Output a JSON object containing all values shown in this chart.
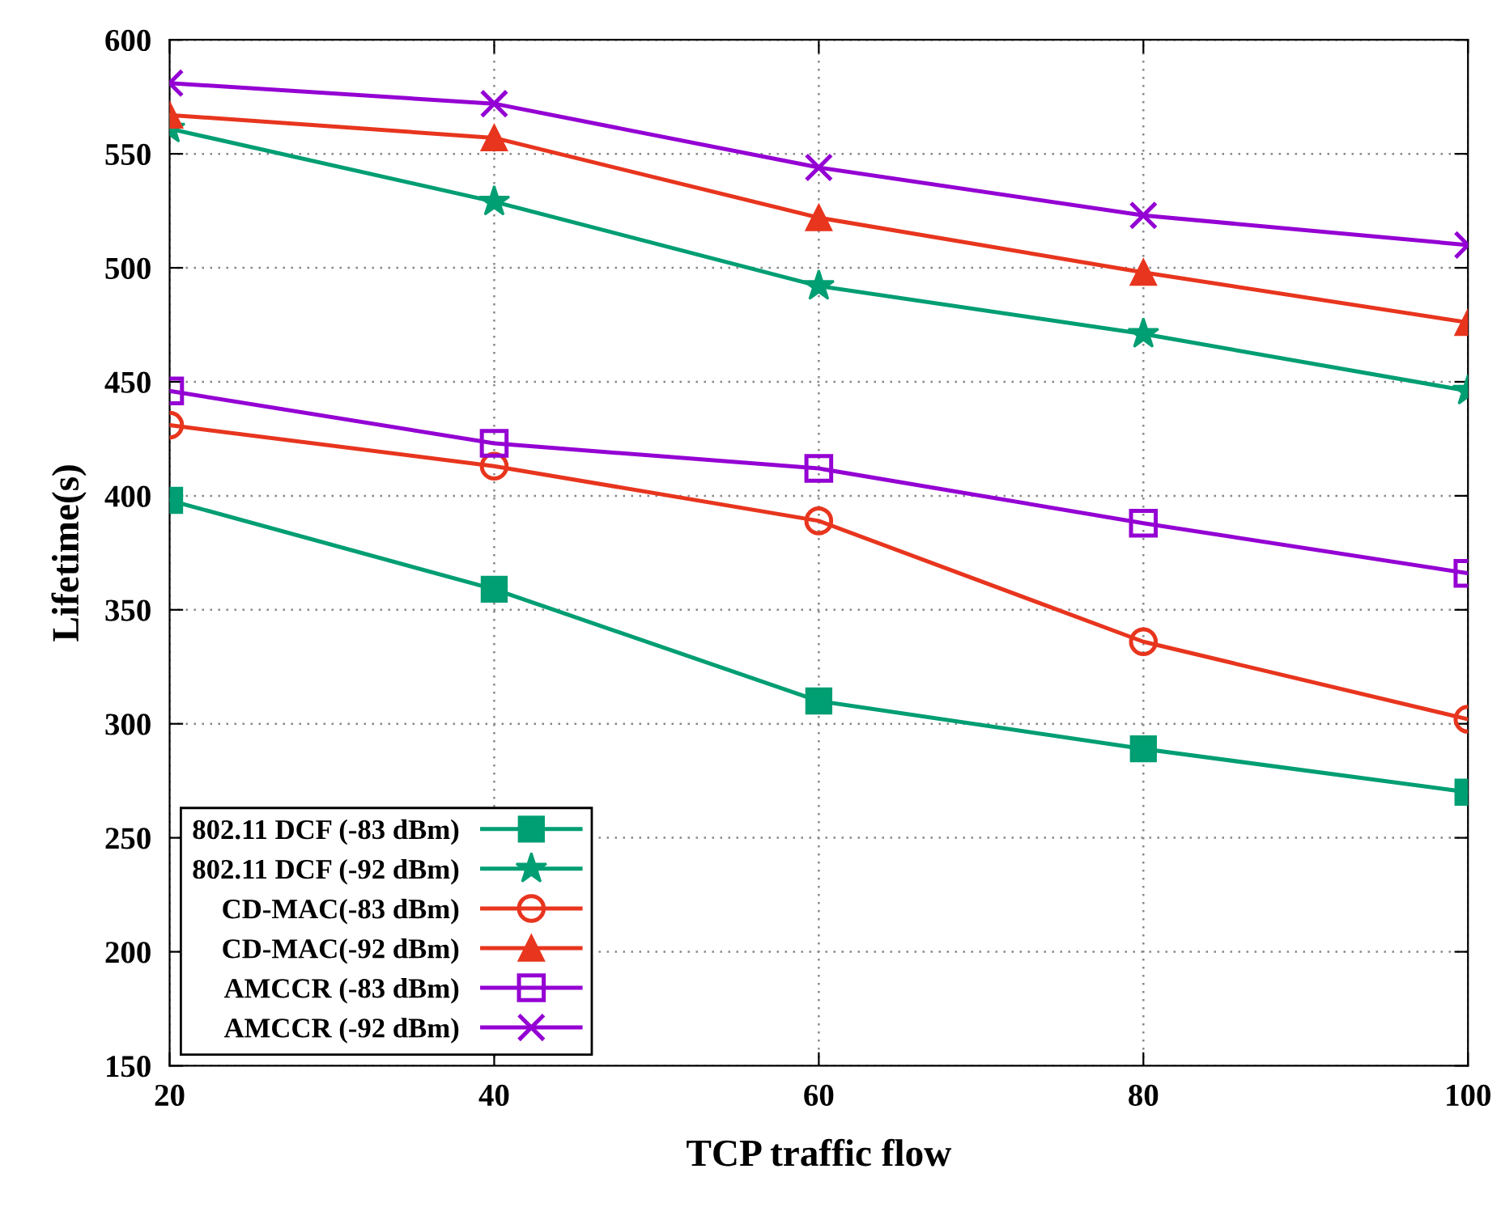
{
  "chart_data": {
    "type": "line",
    "xlabel": "TCP traffic flow",
    "ylabel": "Lifetime(s)",
    "x": [
      20,
      40,
      60,
      80,
      100
    ],
    "series": [
      {
        "name": "802.11 DCF (-83 dBm)",
        "color": "#009e73",
        "marker": "square",
        "values": [
          398,
          359,
          310,
          289,
          270
        ]
      },
      {
        "name": "802.11 DCF (-92 dBm)",
        "color": "#009e73",
        "marker": "star",
        "values": [
          561,
          529,
          492,
          471,
          446
        ]
      },
      {
        "name": "CD-MAC(-83 dBm)",
        "color": "#e8351e",
        "marker": "circle",
        "values": [
          431,
          413,
          389,
          336,
          302
        ]
      },
      {
        "name": "CD-MAC(-92 dBm)",
        "color": "#e8351e",
        "marker": "triangle",
        "values": [
          567,
          557,
          522,
          498,
          476
        ]
      },
      {
        "name": "AMCCR (-83 dBm)",
        "color": "#9400d3",
        "marker": "square",
        "values": [
          446,
          423,
          412,
          388,
          366
        ]
      },
      {
        "name": "AMCCR (-92 dBm)",
        "color": "#9400d3",
        "marker": "cross",
        "values": [
          581,
          572,
          544,
          523,
          510
        ]
      }
    ],
    "xlim": [
      20,
      100
    ],
    "xticks": [
      20,
      40,
      60,
      80,
      100
    ],
    "ylim": [
      150,
      600
    ],
    "yticks": [
      150,
      200,
      250,
      300,
      350,
      400,
      450,
      500,
      550,
      600
    ],
    "grid": true,
    "legend": "bottom left"
  }
}
